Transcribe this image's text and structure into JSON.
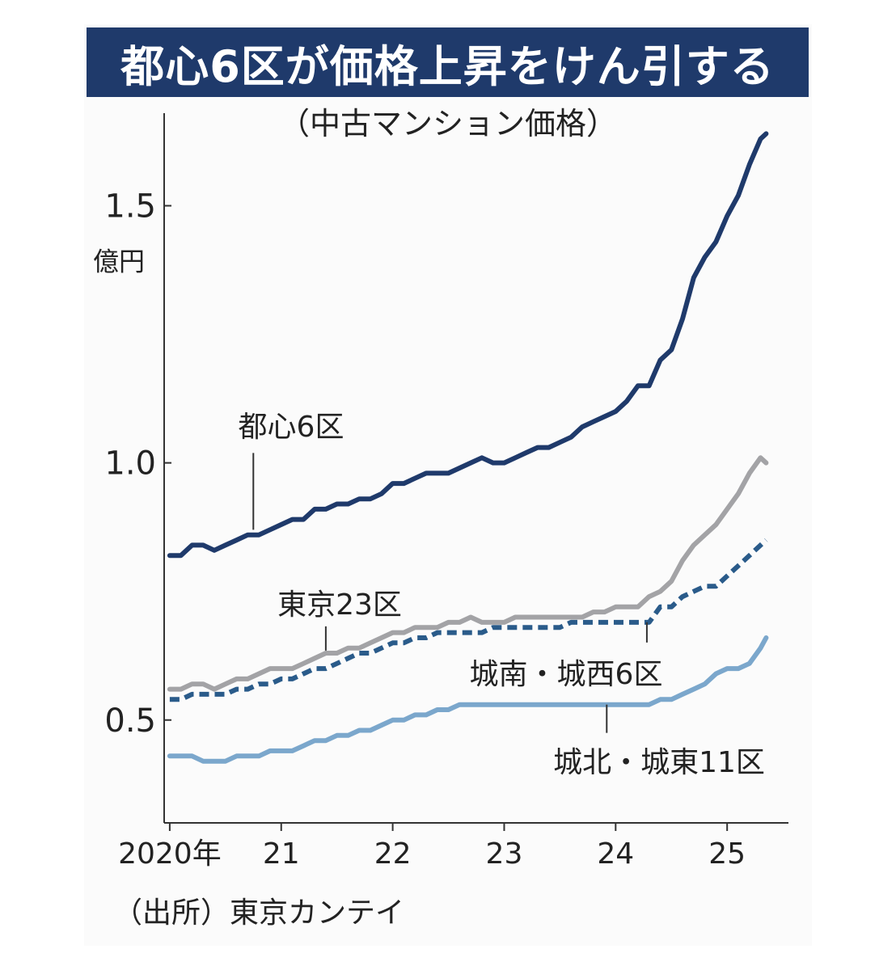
{
  "title": "都心6区が価格上昇をけん引する",
  "subtitle": "（中古マンション価格）",
  "source": "（出所）東京カンテイ",
  "colors": {
    "header_bg": "#1f3a6b",
    "central6": "#1f3a6b",
    "tokyo23": "#a3a3a6",
    "south_west6": "#2a5b8a",
    "north_east11": "#7ba7cc"
  },
  "chart_data": {
    "type": "line",
    "ylabel": "億円",
    "ylim": [
      0.3,
      1.68
    ],
    "xlim": [
      2019.95,
      2025.55
    ],
    "yticks": [
      {
        "value": 0.5,
        "label": "0.5"
      },
      {
        "value": 1.0,
        "label": "1.0"
      },
      {
        "value": 1.5,
        "label": "1.5"
      }
    ],
    "xticks": [
      {
        "value": 2020,
        "label": "2020年"
      },
      {
        "value": 2021,
        "label": "21"
      },
      {
        "value": 2022,
        "label": "22"
      },
      {
        "value": 2023,
        "label": "23"
      },
      {
        "value": 2024,
        "label": "24"
      },
      {
        "value": 2025,
        "label": "25"
      }
    ],
    "grid": false,
    "series": [
      {
        "name": "都心6区",
        "style": "solid",
        "color": "#1f3a6b",
        "label_at": {
          "x": 2020.75,
          "y": 0.87
        },
        "points": [
          [
            2020.0,
            0.82
          ],
          [
            2020.1,
            0.82
          ],
          [
            2020.2,
            0.84
          ],
          [
            2020.3,
            0.84
          ],
          [
            2020.4,
            0.83
          ],
          [
            2020.5,
            0.84
          ],
          [
            2020.6,
            0.85
          ],
          [
            2020.7,
            0.86
          ],
          [
            2020.8,
            0.86
          ],
          [
            2020.9,
            0.87
          ],
          [
            2021.0,
            0.88
          ],
          [
            2021.1,
            0.89
          ],
          [
            2021.2,
            0.89
          ],
          [
            2021.3,
            0.91
          ],
          [
            2021.4,
            0.91
          ],
          [
            2021.5,
            0.92
          ],
          [
            2021.6,
            0.92
          ],
          [
            2021.7,
            0.93
          ],
          [
            2021.8,
            0.93
          ],
          [
            2021.9,
            0.94
          ],
          [
            2022.0,
            0.96
          ],
          [
            2022.1,
            0.96
          ],
          [
            2022.2,
            0.97
          ],
          [
            2022.3,
            0.98
          ],
          [
            2022.4,
            0.98
          ],
          [
            2022.5,
            0.98
          ],
          [
            2022.6,
            0.99
          ],
          [
            2022.7,
            1.0
          ],
          [
            2022.8,
            1.01
          ],
          [
            2022.9,
            1.0
          ],
          [
            2023.0,
            1.0
          ],
          [
            2023.1,
            1.01
          ],
          [
            2023.2,
            1.02
          ],
          [
            2023.3,
            1.03
          ],
          [
            2023.4,
            1.03
          ],
          [
            2023.5,
            1.04
          ],
          [
            2023.6,
            1.05
          ],
          [
            2023.7,
            1.07
          ],
          [
            2023.8,
            1.08
          ],
          [
            2023.9,
            1.09
          ],
          [
            2024.0,
            1.1
          ],
          [
            2024.1,
            1.12
          ],
          [
            2024.2,
            1.15
          ],
          [
            2024.3,
            1.15
          ],
          [
            2024.4,
            1.2
          ],
          [
            2024.5,
            1.22
          ],
          [
            2024.6,
            1.28
          ],
          [
            2024.7,
            1.36
          ],
          [
            2024.8,
            1.4
          ],
          [
            2024.9,
            1.43
          ],
          [
            2025.0,
            1.48
          ],
          [
            2025.1,
            1.52
          ],
          [
            2025.2,
            1.58
          ],
          [
            2025.3,
            1.63
          ],
          [
            2025.35,
            1.64
          ]
        ]
      },
      {
        "name": "東京23区",
        "style": "solid",
        "color": "#a3a3a6",
        "label_at": {
          "x": 2021.4,
          "y": 0.635
        },
        "points": [
          [
            2020.0,
            0.56
          ],
          [
            2020.1,
            0.56
          ],
          [
            2020.2,
            0.57
          ],
          [
            2020.3,
            0.57
          ],
          [
            2020.4,
            0.56
          ],
          [
            2020.5,
            0.57
          ],
          [
            2020.6,
            0.58
          ],
          [
            2020.7,
            0.58
          ],
          [
            2020.8,
            0.59
          ],
          [
            2020.9,
            0.6
          ],
          [
            2021.0,
            0.6
          ],
          [
            2021.1,
            0.6
          ],
          [
            2021.2,
            0.61
          ],
          [
            2021.3,
            0.62
          ],
          [
            2021.4,
            0.63
          ],
          [
            2021.5,
            0.63
          ],
          [
            2021.6,
            0.64
          ],
          [
            2021.7,
            0.64
          ],
          [
            2021.8,
            0.65
          ],
          [
            2021.9,
            0.66
          ],
          [
            2022.0,
            0.67
          ],
          [
            2022.1,
            0.67
          ],
          [
            2022.2,
            0.68
          ],
          [
            2022.3,
            0.68
          ],
          [
            2022.4,
            0.68
          ],
          [
            2022.5,
            0.69
          ],
          [
            2022.6,
            0.69
          ],
          [
            2022.7,
            0.7
          ],
          [
            2022.8,
            0.69
          ],
          [
            2022.9,
            0.69
          ],
          [
            2023.0,
            0.69
          ],
          [
            2023.1,
            0.7
          ],
          [
            2023.2,
            0.7
          ],
          [
            2023.3,
            0.7
          ],
          [
            2023.4,
            0.7
          ],
          [
            2023.5,
            0.7
          ],
          [
            2023.6,
            0.7
          ],
          [
            2023.7,
            0.7
          ],
          [
            2023.8,
            0.71
          ],
          [
            2023.9,
            0.71
          ],
          [
            2024.0,
            0.72
          ],
          [
            2024.1,
            0.72
          ],
          [
            2024.2,
            0.72
          ],
          [
            2024.3,
            0.74
          ],
          [
            2024.4,
            0.75
          ],
          [
            2024.5,
            0.77
          ],
          [
            2024.6,
            0.81
          ],
          [
            2024.7,
            0.84
          ],
          [
            2024.8,
            0.86
          ],
          [
            2024.9,
            0.88
          ],
          [
            2025.0,
            0.91
          ],
          [
            2025.1,
            0.94
          ],
          [
            2025.2,
            0.98
          ],
          [
            2025.3,
            1.01
          ],
          [
            2025.35,
            1.0
          ]
        ]
      },
      {
        "name": "城南・城西6区",
        "style": "dashed",
        "color": "#2a5b8a",
        "label_at": {
          "x": 2024.28,
          "y": 0.69
        },
        "points": [
          [
            2020.0,
            0.54
          ],
          [
            2020.1,
            0.54
          ],
          [
            2020.2,
            0.55
          ],
          [
            2020.3,
            0.55
          ],
          [
            2020.4,
            0.55
          ],
          [
            2020.5,
            0.55
          ],
          [
            2020.6,
            0.56
          ],
          [
            2020.7,
            0.56
          ],
          [
            2020.8,
            0.57
          ],
          [
            2020.9,
            0.57
          ],
          [
            2021.0,
            0.58
          ],
          [
            2021.1,
            0.58
          ],
          [
            2021.2,
            0.59
          ],
          [
            2021.3,
            0.6
          ],
          [
            2021.4,
            0.6
          ],
          [
            2021.5,
            0.61
          ],
          [
            2021.6,
            0.62
          ],
          [
            2021.7,
            0.63
          ],
          [
            2021.8,
            0.63
          ],
          [
            2021.9,
            0.64
          ],
          [
            2022.0,
            0.65
          ],
          [
            2022.1,
            0.65
          ],
          [
            2022.2,
            0.66
          ],
          [
            2022.3,
            0.66
          ],
          [
            2022.4,
            0.67
          ],
          [
            2022.5,
            0.67
          ],
          [
            2022.6,
            0.67
          ],
          [
            2022.7,
            0.67
          ],
          [
            2022.8,
            0.67
          ],
          [
            2022.9,
            0.68
          ],
          [
            2023.0,
            0.68
          ],
          [
            2023.1,
            0.68
          ],
          [
            2023.2,
            0.68
          ],
          [
            2023.3,
            0.68
          ],
          [
            2023.4,
            0.68
          ],
          [
            2023.5,
            0.68
          ],
          [
            2023.6,
            0.69
          ],
          [
            2023.7,
            0.69
          ],
          [
            2023.8,
            0.69
          ],
          [
            2023.9,
            0.69
          ],
          [
            2024.0,
            0.69
          ],
          [
            2024.1,
            0.69
          ],
          [
            2024.2,
            0.69
          ],
          [
            2024.3,
            0.69
          ],
          [
            2024.4,
            0.72
          ],
          [
            2024.5,
            0.72
          ],
          [
            2024.6,
            0.74
          ],
          [
            2024.7,
            0.75
          ],
          [
            2024.8,
            0.76
          ],
          [
            2024.9,
            0.76
          ],
          [
            2025.0,
            0.78
          ],
          [
            2025.1,
            0.8
          ],
          [
            2025.2,
            0.82
          ],
          [
            2025.3,
            0.84
          ],
          [
            2025.35,
            0.85
          ]
        ]
      },
      {
        "name": "城北・城東11区",
        "style": "solid",
        "color": "#7ba7cc",
        "label_at": {
          "x": 2023.92,
          "y": 0.53
        },
        "points": [
          [
            2020.0,
            0.43
          ],
          [
            2020.1,
            0.43
          ],
          [
            2020.2,
            0.43
          ],
          [
            2020.3,
            0.42
          ],
          [
            2020.4,
            0.42
          ],
          [
            2020.5,
            0.42
          ],
          [
            2020.6,
            0.43
          ],
          [
            2020.7,
            0.43
          ],
          [
            2020.8,
            0.43
          ],
          [
            2020.9,
            0.44
          ],
          [
            2021.0,
            0.44
          ],
          [
            2021.1,
            0.44
          ],
          [
            2021.2,
            0.45
          ],
          [
            2021.3,
            0.46
          ],
          [
            2021.4,
            0.46
          ],
          [
            2021.5,
            0.47
          ],
          [
            2021.6,
            0.47
          ],
          [
            2021.7,
            0.48
          ],
          [
            2021.8,
            0.48
          ],
          [
            2021.9,
            0.49
          ],
          [
            2022.0,
            0.5
          ],
          [
            2022.1,
            0.5
          ],
          [
            2022.2,
            0.51
          ],
          [
            2022.3,
            0.51
          ],
          [
            2022.4,
            0.52
          ],
          [
            2022.5,
            0.52
          ],
          [
            2022.6,
            0.53
          ],
          [
            2022.7,
            0.53
          ],
          [
            2022.8,
            0.53
          ],
          [
            2022.9,
            0.53
          ],
          [
            2023.0,
            0.53
          ],
          [
            2023.1,
            0.53
          ],
          [
            2023.2,
            0.53
          ],
          [
            2023.3,
            0.53
          ],
          [
            2023.4,
            0.53
          ],
          [
            2023.5,
            0.53
          ],
          [
            2023.6,
            0.53
          ],
          [
            2023.7,
            0.53
          ],
          [
            2023.8,
            0.53
          ],
          [
            2023.9,
            0.53
          ],
          [
            2024.0,
            0.53
          ],
          [
            2024.1,
            0.53
          ],
          [
            2024.2,
            0.53
          ],
          [
            2024.3,
            0.53
          ],
          [
            2024.4,
            0.54
          ],
          [
            2024.5,
            0.54
          ],
          [
            2024.6,
            0.55
          ],
          [
            2024.7,
            0.56
          ],
          [
            2024.8,
            0.57
          ],
          [
            2024.9,
            0.59
          ],
          [
            2025.0,
            0.6
          ],
          [
            2025.1,
            0.6
          ],
          [
            2025.2,
            0.61
          ],
          [
            2025.3,
            0.64
          ],
          [
            2025.35,
            0.66
          ]
        ]
      }
    ]
  }
}
